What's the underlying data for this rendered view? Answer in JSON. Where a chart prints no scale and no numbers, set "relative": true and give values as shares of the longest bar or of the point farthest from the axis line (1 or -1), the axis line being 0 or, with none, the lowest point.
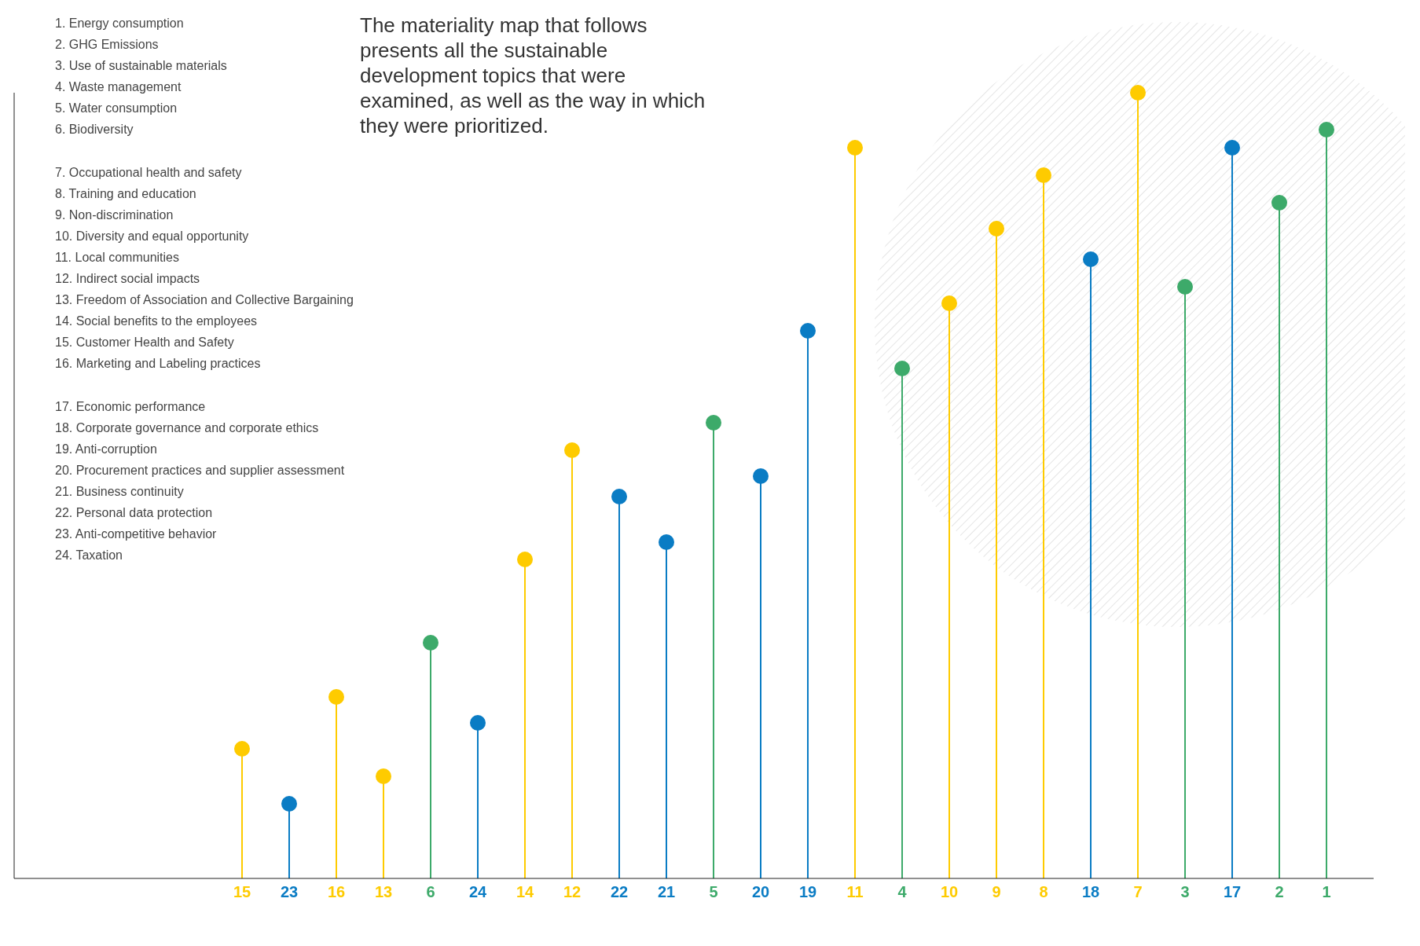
{
  "chart_data": {
    "type": "lollipop",
    "relative": true,
    "subtitle": "The materiality map that follows presents all the sustainable development topics that were examined, as well as the way in which they were prioritized.",
    "annotations": [
      "1. Energy consumption",
      "2. GHG Emissions",
      "3. Use of sustainable materials",
      "4. Waste management",
      "5. Water consumption",
      "6. Biodiversity",
      "7. Occupational health and safety",
      "8. Training and education",
      "9. Non-discrimination",
      "10. Diversity and equal opportunity",
      "11. Local communities",
      "12. Indirect social impacts",
      "13. Freedom of Association and Collective Bargaining",
      "14. Social benefits to the employees",
      "15. Customer Health and Safety",
      "16. Marketing and Labeling practices",
      "17. Economic performance",
      "18. Corporate governance and corporate ethics",
      "19. Anti-corruption",
      "20. Procurement practices and supplier assessment",
      "21. Business continuity",
      "22. Personal data protection",
      "23. Anti-competitive behavior",
      "24. Taxation"
    ],
    "categories": [
      "15",
      "23",
      "16",
      "13",
      "6",
      "24",
      "14",
      "12",
      "22",
      "21",
      "5",
      "20",
      "19",
      "11",
      "4",
      "10",
      "9",
      "8",
      "18",
      "7",
      "3",
      "17",
      "2",
      "1"
    ],
    "values": [
      0.165,
      0.095,
      0.231,
      0.13,
      0.3,
      0.198,
      0.406,
      0.545,
      0.486,
      0.428,
      0.58,
      0.512,
      0.697,
      0.93,
      0.649,
      0.732,
      0.827,
      0.895,
      0.788,
      1.0,
      0.753,
      0.93,
      0.86,
      0.953
    ],
    "colors": [
      "#fecb00",
      "#0a7cc4",
      "#fecb00",
      "#fecb00",
      "#3daa6a",
      "#0a7cc4",
      "#fecb00",
      "#fecb00",
      "#0a7cc4",
      "#0a7cc4",
      "#3daa6a",
      "#0a7cc4",
      "#0a7cc4",
      "#fecb00",
      "#3daa6a",
      "#fecb00",
      "#fecb00",
      "#fecb00",
      "#0a7cc4",
      "#fecb00",
      "#3daa6a",
      "#0a7cc4",
      "#3daa6a",
      "#3daa6a"
    ],
    "grid": false,
    "legend": false
  }
}
